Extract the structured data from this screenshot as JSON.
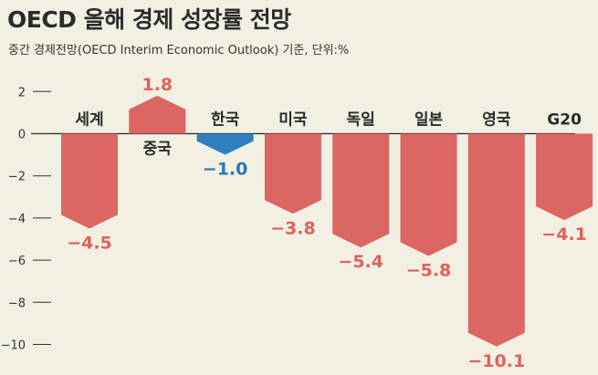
{
  "header": {
    "title": "OECD 올해 경제 성장률 전망",
    "subtitle": "중간 경제전망(OECD Interim Economic Outlook) 기준, 단위:%"
  },
  "colors": {
    "negative": "#dc6663",
    "positive": "#dc6663",
    "highlight": "#2f7fbf",
    "negative_text": "#e0615a",
    "highlight_text": "#2878b5",
    "background": "#f2efe3"
  },
  "chart_data": {
    "type": "bar",
    "title": "OECD 올해 경제 성장률 전망",
    "subtitle": "중간 경제전망(OECD Interim Economic Outlook) 기준, 단위:%",
    "categories": [
      "세계",
      "중국",
      "한국",
      "미국",
      "독일",
      "일본",
      "영국",
      "G20"
    ],
    "values": [
      -4.5,
      1.8,
      -1.0,
      -3.8,
      -5.4,
      -5.8,
      -10.1,
      -4.1
    ],
    "value_labels": [
      "−4.5",
      "1.8",
      "−1.0",
      "−3.8",
      "−5.4",
      "−5.8",
      "−10.1",
      "−4.1"
    ],
    "highlight": "한국",
    "ylim": [
      -10,
      2
    ],
    "yticks": [
      2,
      0,
      -2,
      -4,
      -6,
      -8,
      -10
    ],
    "ytick_labels": [
      "2",
      "0",
      "−2",
      "−4",
      "−6",
      "−8",
      "−10"
    ],
    "xlabel": "",
    "ylabel": "",
    "grid": false,
    "legend": "none"
  }
}
